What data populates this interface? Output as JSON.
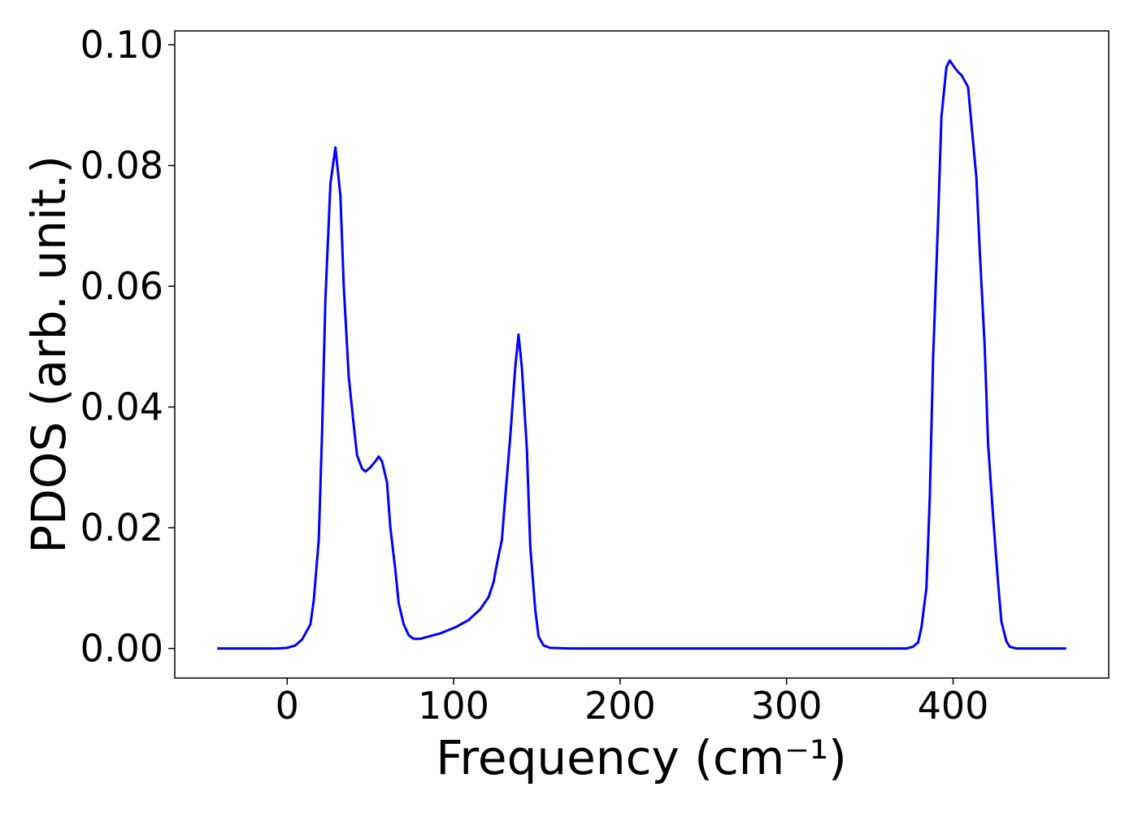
{
  "chart_data": {
    "type": "line",
    "xlabel": "Frequency (cm⁻¹)",
    "ylabel": "PDOS (arb. unit.)",
    "xlim": [
      -67.5,
      493.5
    ],
    "ylim": [
      -0.0049,
      0.1023
    ],
    "xticks": [
      0,
      100,
      200,
      300,
      400
    ],
    "yticks": [
      {
        "value": 0,
        "label": "0.00"
      },
      {
        "value": 0.02,
        "label": "0.02"
      },
      {
        "value": 0.04,
        "label": "0.04"
      },
      {
        "value": 0.06,
        "label": "0.06"
      },
      {
        "value": 0.08,
        "label": "0.08"
      },
      {
        "value": 0.1,
        "label": "0.10"
      }
    ],
    "x": [
      -42,
      -6,
      0,
      5,
      9,
      11,
      14,
      16,
      19,
      21,
      23,
      26,
      29,
      32,
      34,
      37,
      40,
      42,
      45,
      47,
      50,
      53,
      55,
      57,
      60,
      62,
      65,
      67,
      70,
      73,
      76,
      80,
      92,
      101,
      109,
      116,
      121,
      124,
      126,
      129,
      131,
      134,
      137,
      139,
      141,
      144,
      146,
      149,
      151,
      154,
      158,
      170,
      372,
      376,
      379,
      381,
      384,
      386,
      388,
      391,
      393,
      396,
      398,
      401,
      403,
      405,
      409,
      411,
      414,
      416,
      419,
      421,
      424,
      427,
      429,
      432,
      434,
      438,
      468
    ],
    "series": [
      {
        "color": "#0000ff",
        "values": [
          0,
          0,
          0.0001,
          0.0005,
          0.0015,
          0.0025,
          0.004,
          0.008,
          0.018,
          0.036,
          0.058,
          0.077,
          0.083,
          0.075,
          0.06,
          0.045,
          0.037,
          0.032,
          0.0298,
          0.0293,
          0.03,
          0.031,
          0.0318,
          0.031,
          0.0275,
          0.02,
          0.013,
          0.0075,
          0.004,
          0.0022,
          0.0016,
          0.0016,
          0.0025,
          0.0035,
          0.0047,
          0.0065,
          0.0085,
          0.011,
          0.014,
          0.018,
          0.025,
          0.035,
          0.0465,
          0.052,
          0.0465,
          0.033,
          0.017,
          0.0065,
          0.002,
          0.0005,
          0.0001,
          0,
          0,
          0.0003,
          0.001,
          0.0035,
          0.01,
          0.025,
          0.048,
          0.071,
          0.088,
          0.0963,
          0.0974,
          0.0962,
          0.0955,
          0.095,
          0.093,
          0.087,
          0.078,
          0.066,
          0.05,
          0.034,
          0.022,
          0.011,
          0.0045,
          0.0012,
          0.0003,
          0,
          0
        ]
      }
    ]
  }
}
